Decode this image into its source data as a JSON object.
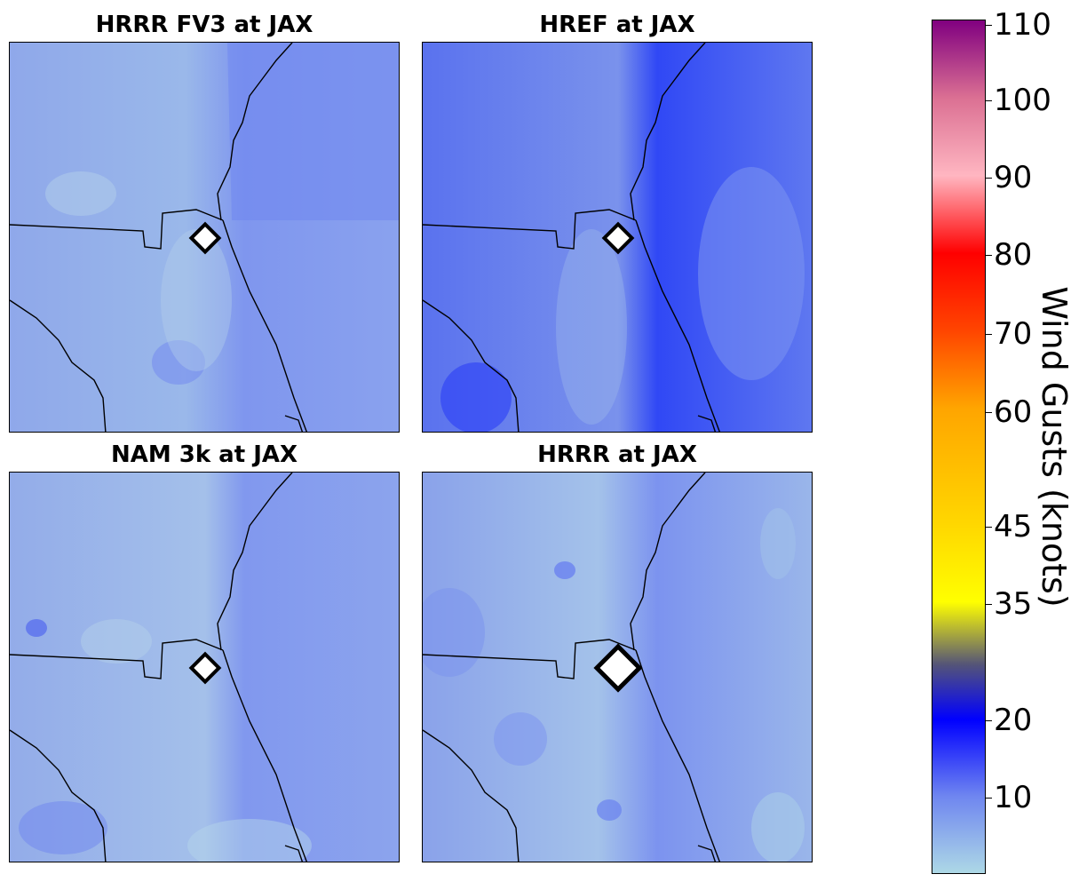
{
  "panels": [
    {
      "title": "HRRR FV3 at JAX",
      "theme": "fv3"
    },
    {
      "title": "HREF at JAX",
      "theme": "href"
    },
    {
      "title": "NAM 3k at JAX",
      "theme": "nam"
    },
    {
      "title": "HRRR at JAX",
      "theme": "hrrr"
    }
  ],
  "colorbar": {
    "label": "Wind Gusts (knots)",
    "min": 0,
    "max": 110,
    "ticks": [
      "110",
      "100",
      "90",
      "80",
      "70",
      "60",
      "45",
      "35",
      "20",
      "10"
    ],
    "colors": {
      "c0": "#add8e6",
      "c10": "#6f86f0",
      "c20": "#0000ff",
      "c28": "#555577",
      "c35": "#ffff00",
      "c45": "#ffd700",
      "c60": "#ffa500",
      "c70": "#ff4500",
      "c80": "#ff0000",
      "c90": "#ffb6c1",
      "c100": "#db7093",
      "c110": "#800080"
    }
  }
}
